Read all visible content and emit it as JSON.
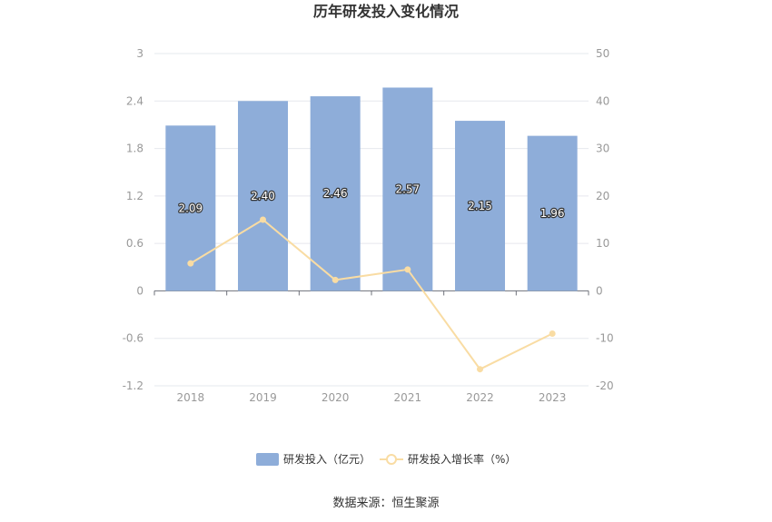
{
  "chart_data": {
    "type": "bar",
    "title": "历年研发投入变化情况",
    "categories": [
      "2018",
      "2019",
      "2020",
      "2021",
      "2022",
      "2023"
    ],
    "series": [
      {
        "name": "研发投入（亿元）",
        "type": "bar",
        "axis": "left",
        "color": "#8eadd9",
        "values": [
          2.09,
          2.4,
          2.46,
          2.57,
          2.15,
          1.96
        ],
        "labels": [
          "2.09",
          "2.40",
          "2.46",
          "2.57",
          "2.15",
          "1.96"
        ]
      },
      {
        "name": "研发投入增长率（%）",
        "type": "line",
        "axis": "right",
        "color": "#f9dca3",
        "values": [
          5.8,
          15.0,
          2.3,
          4.5,
          -16.5,
          -9.0
        ]
      }
    ],
    "y_left": {
      "min": -1.2,
      "max": 3,
      "ticks": [
        "3",
        "2.4",
        "1.8",
        "1.2",
        "0.6",
        "0",
        "-0.6",
        "-1.2"
      ]
    },
    "y_right": {
      "min": -20,
      "max": 50,
      "ticks": [
        "50",
        "40",
        "30",
        "20",
        "10",
        "0",
        "-10",
        "-20"
      ]
    },
    "grid": true,
    "legend_position": "bottom-center"
  },
  "source": "数据来源：恒生聚源"
}
